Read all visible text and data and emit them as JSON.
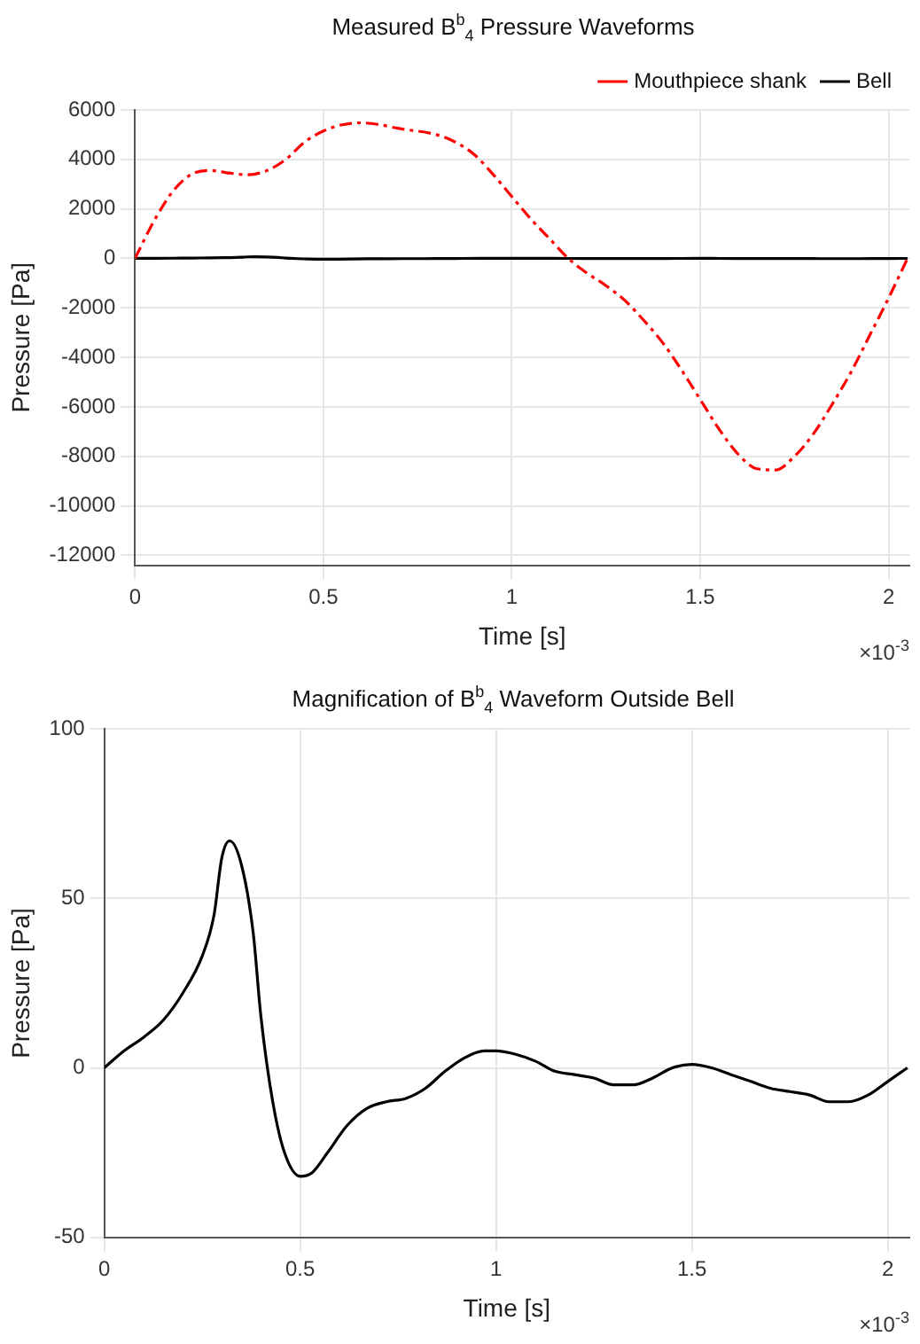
{
  "chart_data": [
    {
      "type": "line",
      "title": "Measured B$^{b}$$_{4}$ Pressure Waveforms",
      "xlabel": "Time [s]",
      "ylabel": "Pressure [Pa]",
      "annotations": [
        "×10$^{-3}$"
      ],
      "xlim": [
        0,
        2.055
      ],
      "xticks": [
        0,
        0.5,
        1,
        1.5,
        2
      ],
      "ylim": [
        -12400,
        6000
      ],
      "yticks": [
        -12000,
        -10000,
        -8000,
        -6000,
        -4000,
        -2000,
        0,
        2000,
        4000,
        6000
      ],
      "grid": true,
      "legend": "top right",
      "marker": "none",
      "series": [
        {
          "name": "Mouthpiece shank",
          "color": "#ff0000",
          "line_style": "dashed",
          "x": [
            0,
            0.05,
            0.1,
            0.15,
            0.2,
            0.25,
            0.3,
            0.35,
            0.4,
            0.45,
            0.5,
            0.55,
            0.6,
            0.65,
            0.7,
            0.8,
            0.85,
            0.9,
            0.95,
            1.0,
            1.05,
            1.1,
            1.15,
            1.2,
            1.25,
            1.3,
            1.35,
            1.4,
            1.45,
            1.5,
            1.55,
            1.6,
            1.65,
            1.7,
            1.75,
            1.8,
            1.85,
            1.9,
            1.95,
            2.0,
            2.05
          ],
          "values": [
            0,
            1500,
            2700,
            3400,
            3550,
            3450,
            3380,
            3550,
            4000,
            4700,
            5150,
            5400,
            5480,
            5400,
            5250,
            5000,
            4700,
            4200,
            3400,
            2500,
            1600,
            800,
            0,
            -600,
            -1100,
            -1700,
            -2500,
            -3400,
            -4500,
            -5700,
            -6900,
            -7900,
            -8500,
            -8550,
            -8000,
            -7100,
            -5900,
            -4600,
            -3100,
            -1600,
            0
          ]
        },
        {
          "name": "Bell",
          "color": "#000000",
          "line_style": "solid",
          "x": [
            0,
            0.05,
            0.1,
            0.15,
            0.2,
            0.25,
            0.28,
            0.3,
            0.32,
            0.35,
            0.38,
            0.4,
            0.43,
            0.46,
            0.5,
            0.53,
            0.57,
            0.62,
            0.67,
            0.72,
            0.77,
            0.82,
            0.87,
            0.92,
            0.97,
            1.0,
            1.05,
            1.1,
            1.15,
            1.2,
            1.25,
            1.3,
            1.35,
            1.4,
            1.45,
            1.5,
            1.55,
            1.6,
            1.65,
            1.7,
            1.75,
            1.8,
            1.85,
            1.9,
            1.95,
            2.0,
            2.05
          ],
          "values": [
            0,
            5,
            9,
            14,
            22,
            33,
            45,
            62,
            67,
            60,
            40,
            15,
            -10,
            -25,
            -32,
            -31,
            -25,
            -17,
            -12,
            -10,
            -9,
            -6,
            -1,
            3,
            5,
            5,
            4,
            2,
            -1,
            -2,
            -3,
            -5,
            -5,
            -3,
            0,
            1,
            0,
            -2,
            -4,
            -6,
            -7,
            -8,
            -10,
            -10,
            -8,
            -4,
            0
          ]
        }
      ]
    },
    {
      "type": "line",
      "title": "Magnification of B$^{b}$$_{4}$ Waveform Outside Bell",
      "xlabel": "Time [s]",
      "ylabel": "Pressure [Pa]",
      "annotations": [
        "×10$^{-3}$"
      ],
      "xlim": [
        0,
        2.055
      ],
      "xticks": [
        0,
        0.5,
        1,
        1.5,
        2
      ],
      "ylim": [
        -50,
        100
      ],
      "yticks": [
        -50,
        0,
        50,
        100
      ],
      "grid": true,
      "marker": "none",
      "series": [
        {
          "color": "#000000",
          "line_style": "solid",
          "x": [
            0,
            0.05,
            0.1,
            0.15,
            0.2,
            0.25,
            0.28,
            0.3,
            0.32,
            0.35,
            0.38,
            0.4,
            0.43,
            0.46,
            0.5,
            0.53,
            0.57,
            0.62,
            0.67,
            0.72,
            0.77,
            0.82,
            0.87,
            0.92,
            0.97,
            1.0,
            1.05,
            1.1,
            1.15,
            1.2,
            1.25,
            1.3,
            1.35,
            1.4,
            1.45,
            1.5,
            1.55,
            1.6,
            1.65,
            1.7,
            1.75,
            1.8,
            1.85,
            1.9,
            1.95,
            2.0,
            2.05
          ],
          "values": [
            0,
            5,
            9,
            14,
            22,
            33,
            45,
            62,
            67,
            60,
            40,
            15,
            -10,
            -25,
            -32,
            -31,
            -25,
            -17,
            -12,
            -10,
            -9,
            -6,
            -1,
            3,
            5,
            5,
            4,
            2,
            -1,
            -2,
            -3,
            -5,
            -5,
            -3,
            0,
            1,
            0,
            -2,
            -4,
            -6,
            -7,
            -8,
            -10,
            -10,
            -8,
            -4,
            0
          ]
        }
      ]
    }
  ]
}
